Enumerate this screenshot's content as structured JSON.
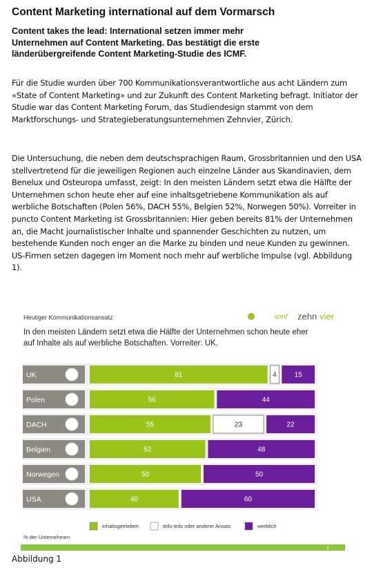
{
  "header": {
    "title": "Content Marketing international auf dem Vormarsch",
    "lead": "Content takes the lead: International setzen immer mehr Unternehmen auf Content Marketing. Das bestätigt die erste länderübergreifende Content Marketing-Studie des ICMF."
  },
  "paragraphs": [
    "Für die Studie wurden über 700 Kommunikationsverantwortliche aus acht Ländern zum «State of Content Marketing» und zur Zukunft des Content Marketing befragt. Initiator der Studie war das Content Marketing Forum, das Studiendesign stammt von dem Marktforschungs- und Strategieberatungsunternehmen Zehnvier, Zürich.",
    "Die Untersuchung, die neben dem deutschsprachigen Raum, Grossbritannien und den USA stellvertretend für die jeweiligen Regionen auch einzelne Länder aus Skandinavien, dem Benelux und Osteuropa umfasst, zeigt: In den meisten Ländern setzt etwa die Hälfte der Unternehmen schon heute eher auf eine inhaltsgetriebene Kommunikation als auf werbliche Botschaften (Polen 56%, DACH 55%, Belgien 52%, Norwegen 50%). Vorreiter in puncto Content Marketing ist Grossbritannien: Hier geben bereits 81% der Unternehmen an, die Macht journalistischer Inhalte und spannender Geschichten zu nutzen, um bestehende Kunden noch enger an die Marke zu binden und neue Kunden zu gewinnen. US-Firmen setzen dagegen im Moment noch mehr auf werbliche Impulse (vgl. Abbildung 1)."
  ],
  "figure": {
    "heading": "Heutiger Kommunikationsansatz",
    "logo_icmf": "icmf",
    "logo_zehn": "zehn",
    "logo_vier": "vier",
    "subtitle": "In den meisten Ländern setzt etwa die Hälfte der Unternehmen schon heute eher auf Inhalte als auf werbliche Botschaften. Vorreiter: UK.",
    "chart": {
      "type": "stacked-bar",
      "categories": [
        "UK",
        "Polen",
        "DACH",
        "Belgien",
        "Norwegen",
        "USA"
      ],
      "series": [
        {
          "name": "inhaltsgetrieben",
          "color": "#9ac31c",
          "values": [
            81,
            56,
            55,
            52,
            50,
            40
          ]
        },
        {
          "name": "teils-teils oder anderer Ansatz",
          "color": "#ffffff",
          "values": [
            4,
            null,
            23,
            null,
            null,
            null
          ]
        },
        {
          "name": "werblich",
          "color": "#6a1f9c",
          "values": [
            15,
            44,
            22,
            48,
            50,
            60
          ]
        }
      ],
      "xlim": [
        0,
        100
      ]
    },
    "unit_note": "% der Unternehmen",
    "page_marker": "1",
    "caption": "Abbildung 1"
  }
}
